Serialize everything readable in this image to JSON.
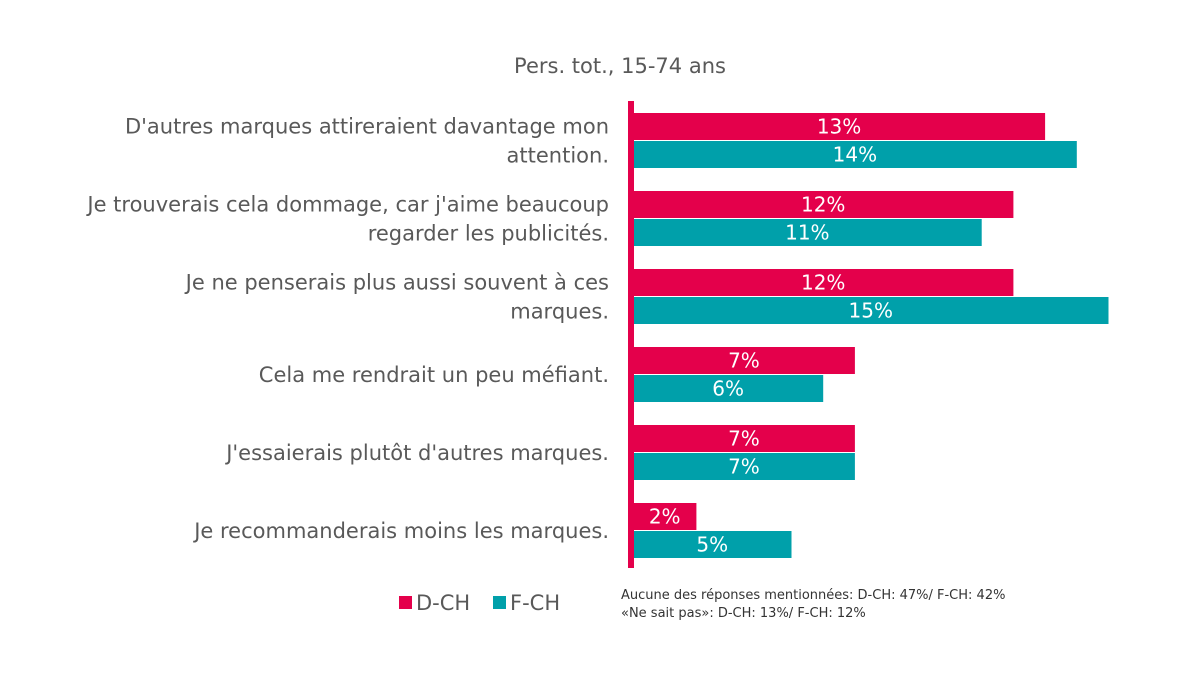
{
  "colors": {
    "d_ch": "#E4004B",
    "f_ch": "#00A0AA",
    "text": "#595959"
  },
  "chart_data": {
    "type": "bar",
    "orientation": "horizontal",
    "title": "Pers. tot., 15-74 ans",
    "categories": [
      [
        "D'autres marques attireraient davantage mon",
        "attention."
      ],
      [
        "Je trouverais cela dommage, car j'aime beaucoup",
        "regarder les publicités."
      ],
      [
        "Je ne penserais plus aussi souvent à ces",
        "marques."
      ],
      [
        "Cela me rendrait un peu méfiant."
      ],
      [
        "J'essaierais plutôt d'autres marques."
      ],
      [
        "Je recommanderais moins les marques."
      ]
    ],
    "series": [
      {
        "name": "D-CH",
        "values": [
          13,
          12,
          12,
          7,
          7,
          2
        ],
        "labels": [
          "13%",
          "12%",
          "12%",
          "7%",
          "7%",
          "2%"
        ]
      },
      {
        "name": "F-CH",
        "values": [
          14,
          11,
          15,
          6,
          7,
          5
        ],
        "labels": [
          "14%",
          "11%",
          "15%",
          "6%",
          "7%",
          "5%"
        ]
      }
    ],
    "xlim": [
      0,
      15
    ],
    "legend_position": "bottom-left",
    "notes": [
      "Aucune des réponses mentionnées: D-CH: 47%/ F-CH: 42%",
      "«Ne sait pas»: D-CH: 13%/ F-CH: 12%"
    ]
  }
}
